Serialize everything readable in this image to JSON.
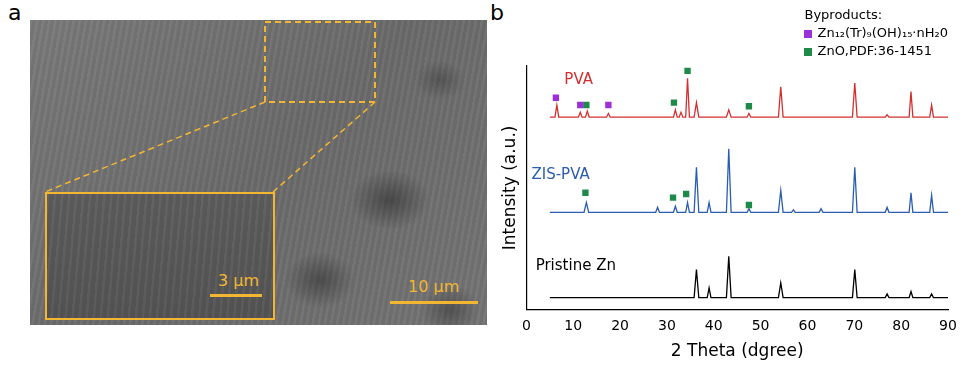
{
  "panel_a": {
    "letter": "a",
    "scale_bar": "10 μm",
    "inset_scale_bar": "3 μm"
  },
  "panel_b": {
    "letter": "b"
  },
  "chart_data": {
    "type": "line",
    "x_label": "2 Theta (dgree)",
    "y_label": "Intensity (a.u.)",
    "xlim": [
      0,
      90
    ],
    "xticks": [
      0,
      10,
      20,
      30,
      40,
      50,
      60,
      70,
      80,
      90
    ],
    "ylim": [
      0,
      100
    ],
    "yticks": [],
    "tick_labels": "x",
    "grid": false,
    "legend": "top right",
    "legend_title": "Byproducts:",
    "series": [
      {
        "name": "PVA",
        "color": "#d32f2f",
        "type": "line",
        "line_style": "solid",
        "x": [
          5,
          6.1,
          6.5,
          6.9,
          11.1,
          11.5,
          11.9,
          12.6,
          13,
          13.4,
          17.1,
          17.5,
          17.9,
          31.4,
          31.8,
          32.2,
          32.6,
          33,
          33.4,
          34,
          34.4,
          34.8,
          35.8,
          36.3,
          36.8,
          42.7,
          43.2,
          43.7,
          47.1,
          47.5,
          47.9,
          53.8,
          54.3,
          54.8,
          69.6,
          70.1,
          70.6,
          76.6,
          77,
          77.4,
          81.7,
          82.1,
          82.5,
          86.1,
          86.5,
          86.9,
          90
        ],
        "values": [
          79,
          79,
          84,
          79,
          79,
          81,
          79,
          79,
          81.5,
          79,
          79,
          80.5,
          79,
          79,
          82,
          79,
          79,
          81,
          79,
          79,
          95,
          79,
          79,
          85,
          79,
          79,
          82,
          79,
          79,
          80.5,
          79,
          79,
          91.5,
          79,
          79,
          93,
          79,
          79,
          80,
          79,
          79,
          89.5,
          79,
          79,
          84,
          79,
          79
        ]
      },
      {
        "name": "ZIS-PVA",
        "color": "#2a5db0",
        "type": "line",
        "line_style": "solid",
        "x": [
          5,
          12.3,
          12.8,
          13.3,
          27.6,
          28,
          28.4,
          31.4,
          31.8,
          32.2,
          34,
          34.4,
          34.8,
          35.8,
          36.3,
          36.8,
          38.6,
          39,
          39.4,
          42.7,
          43.2,
          43.7,
          47.1,
          47.5,
          47.9,
          53.8,
          54.3,
          54.8,
          56.6,
          57,
          57.4,
          62.5,
          62.9,
          63.3,
          69.6,
          70.1,
          70.6,
          76.6,
          77,
          77.4,
          81.7,
          82.1,
          82.5,
          86.1,
          86.5,
          86.9,
          90
        ],
        "values": [
          40,
          40,
          44,
          40,
          40,
          42,
          40,
          40,
          42.5,
          40,
          40,
          44,
          40,
          40,
          58.5,
          40,
          40,
          44,
          40,
          40,
          66,
          40,
          40,
          41.5,
          40,
          40,
          49,
          40,
          40,
          41,
          40,
          40,
          41.5,
          40,
          40,
          58.5,
          40,
          40,
          42,
          40,
          40,
          48,
          40,
          40,
          47,
          40,
          40
        ]
      },
      {
        "name": "Pristine Zn",
        "color": "#000000",
        "type": "line",
        "line_style": "solid",
        "x": [
          5,
          35.8,
          36.3,
          36.8,
          38.6,
          39,
          39.4,
          42.7,
          43.2,
          43.7,
          53.8,
          54.3,
          54.8,
          69.6,
          70.1,
          70.6,
          76.6,
          77,
          77.4,
          81.7,
          82.1,
          82.5,
          86.1,
          86.5,
          86.9,
          90
        ],
        "values": [
          5,
          5,
          16.5,
          5,
          5,
          9,
          5,
          5,
          22,
          5,
          5,
          11,
          5,
          5,
          16.5,
          5,
          5,
          6.5,
          5,
          5,
          7.5,
          5,
          5,
          6.5,
          5,
          5
        ]
      },
      {
        "name": "Zn₁₂(Tr)₉(OH)₁₅·nH₂0",
        "color": "#9b30d9",
        "type": "scatter",
        "marker": "square",
        "x": [
          6.3,
          11.5,
          17.5
        ],
        "values": [
          87,
          84,
          84
        ]
      },
      {
        "name": "ZnO,PDF:36-1451",
        "color": "#1e8a4a",
        "type": "scatter",
        "marker": "square",
        "x": [
          12.8,
          31.5,
          34.4,
          47.5,
          12.6,
          31.3,
          34.1,
          47.5
        ],
        "values": [
          84,
          85,
          98,
          83.5,
          48,
          46,
          47.5,
          43
        ]
      }
    ]
  }
}
